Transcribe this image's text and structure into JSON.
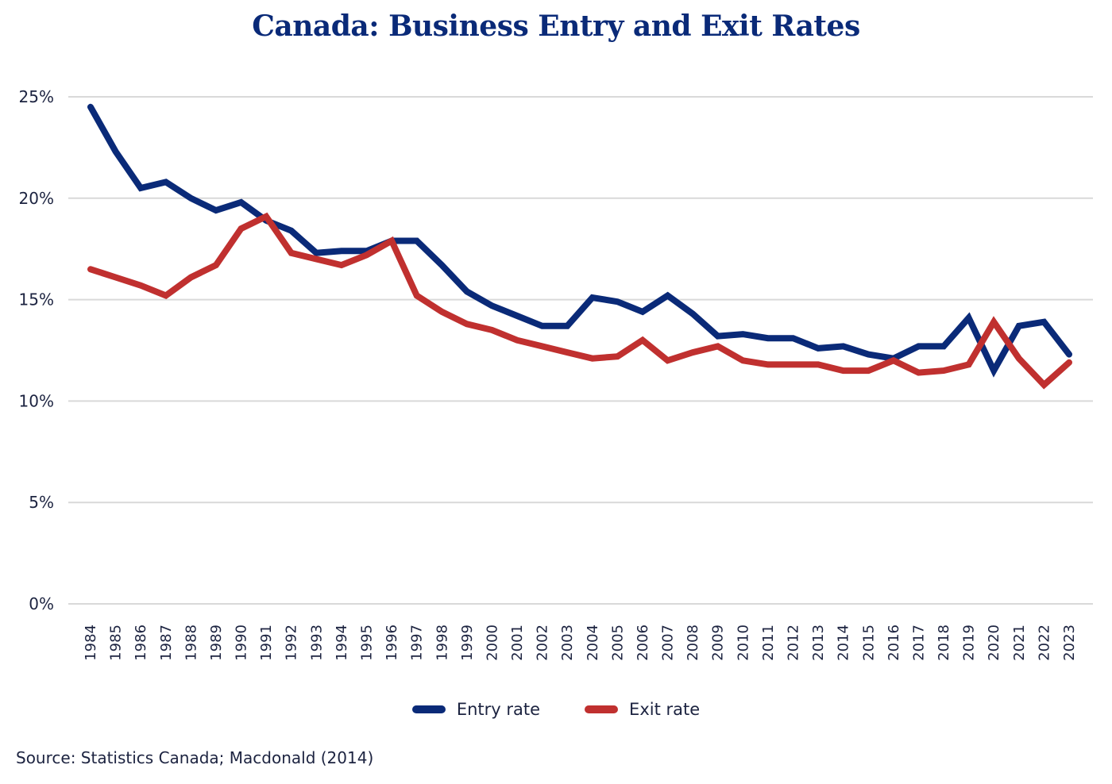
{
  "chart_data": {
    "type": "line",
    "title": "Canada: Business Entry and Exit Rates",
    "xlabel": "",
    "ylabel": "",
    "ylim": [
      0,
      25
    ],
    "yticks": [
      "0%",
      "5%",
      "10%",
      "15%",
      "20%",
      "25%"
    ],
    "ytick_values": [
      0,
      5,
      10,
      15,
      20,
      25
    ],
    "grid": true,
    "legend_position": "bottom-center",
    "x": [
      "1984",
      "1985",
      "1986",
      "1987",
      "1988",
      "1989",
      "1990",
      "1991",
      "1992",
      "1993",
      "1994",
      "1995",
      "1996",
      "1997",
      "1998",
      "1999",
      "2000",
      "2001",
      "2002",
      "2003",
      "2004",
      "2005",
      "2006",
      "2007",
      "2008",
      "2009",
      "2010",
      "2011",
      "2012",
      "2013",
      "2014",
      "2015",
      "2016",
      "2017",
      "2018",
      "2019",
      "2020",
      "2021",
      "2022",
      "2023"
    ],
    "series": [
      {
        "name": "Entry rate",
        "color": "#0a2a78",
        "values": [
          24.5,
          22.3,
          20.5,
          20.8,
          20.0,
          19.4,
          19.8,
          18.9,
          18.4,
          17.3,
          17.4,
          17.4,
          17.9,
          17.9,
          16.7,
          15.4,
          14.7,
          14.2,
          13.7,
          13.7,
          15.1,
          14.9,
          14.4,
          15.2,
          14.3,
          13.2,
          13.3,
          13.1,
          13.1,
          12.6,
          12.7,
          12.3,
          12.1,
          12.7,
          12.7,
          14.1,
          11.5,
          13.7,
          13.9,
          12.3
        ]
      },
      {
        "name": "Exit rate",
        "color": "#c0302f",
        "values": [
          16.5,
          16.1,
          15.7,
          15.2,
          16.1,
          16.7,
          18.5,
          19.1,
          17.3,
          17.0,
          16.7,
          17.2,
          17.9,
          15.2,
          14.4,
          13.8,
          13.5,
          13.0,
          12.7,
          12.4,
          12.1,
          12.2,
          13.0,
          12.0,
          12.4,
          12.7,
          12.0,
          11.8,
          11.8,
          11.8,
          11.5,
          11.5,
          12.0,
          11.4,
          11.5,
          11.8,
          13.9,
          12.1,
          10.8,
          11.9
        ]
      }
    ],
    "source": "Source: Statistics Canada; Macdonald (2014)"
  }
}
